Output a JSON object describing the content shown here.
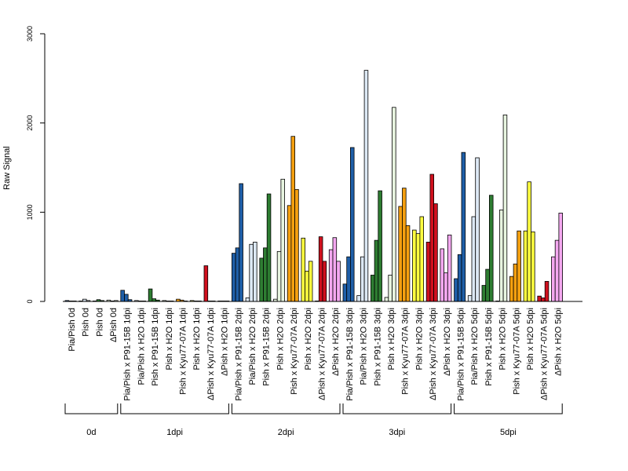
{
  "chart_data": {
    "type": "bar",
    "ylabel": "Raw Signal",
    "ylim": [
      0,
      3000
    ],
    "yticks": [
      0,
      1000,
      2000,
      3000
    ],
    "grid": false,
    "categories": [
      "Pia/Pish 0d",
      "Pish 0d",
      "Pish 0d",
      "ΔPish 0d",
      "Pia/Pish x P91-15B 1dpi",
      "Pia/Pish x H2O 1dpi",
      "Pish x P91-15B 1dpi",
      "Pish x H2O 1dpi",
      "Pish x Kyu77-07A 1dpi",
      "Pish x H2O 1dpi",
      "ΔPish x Kyu77-07A 1dpi",
      "ΔPish x H2O 1dpi",
      "Pia/Pish x P91-15B 2dpi",
      "Pia/Pish x H2O 2dpi",
      "Pish x P91-15B 2dpi",
      "Pish x H2O 2dpi",
      "Pish x Kyu77-07A 2dpi",
      "Pish x H2O 2dpi",
      "ΔPish x Kyu77-07A 2dpi",
      "ΔPish x H2O 2dpi",
      "Pia/Pish x P91-15B 3dpi",
      "Pia/Pish x H2O 3dpi",
      "Pish x P91-15B 3dpi",
      "Pish x H2O 3dpi",
      "Pish x Kyu77-07A 3dpi",
      "Pish x H2O 3dpi",
      "ΔPish x Kyu77-07A 3dpi",
      "ΔPish x H2O 3dpi",
      "Pia/Pish x P91-15B 5dpi",
      "Pia/Pish x H2O 5dpi",
      "Pish x P91-15B 5dpi",
      "Pish x H2O 5dpi",
      "Pish x Kyu77-07A 5dpi",
      "Pish x H2O 5dpi",
      "ΔPish x Kyu77-07A 5dpi",
      "ΔPish x H2O 5dpi"
    ],
    "category_colors": [
      "#1f5fa8",
      "#dce8f4",
      "#2e7d32",
      "#e8f5e0",
      "#1f5fa8",
      "#dce8f4",
      "#2e7d32",
      "#e8f5e0",
      "#f5a010",
      "#ffff40",
      "#d0101e",
      "#f4a8f0",
      "#1f5fa8",
      "#dce8f4",
      "#2e7d32",
      "#e8f5e0",
      "#f5a010",
      "#ffff40",
      "#d0101e",
      "#f4a8f0",
      "#1f5fa8",
      "#dce8f4",
      "#2e7d32",
      "#e8f5e0",
      "#f5a010",
      "#ffff40",
      "#d0101e",
      "#f4a8f0",
      "#1f5fa8",
      "#dce8f4",
      "#2e7d32",
      "#e8f5e0",
      "#f5a010",
      "#ffff40",
      "#d0101e",
      "#f4a8f0"
    ],
    "values": [
      [
        10,
        5,
        5
      ],
      [
        5,
        25,
        10
      ],
      [
        5,
        20,
        10
      ],
      [
        15,
        5,
        10
      ],
      [
        125,
        80,
        20
      ],
      [
        10,
        5,
        5
      ],
      [
        140,
        30,
        15
      ],
      [
        10,
        5,
        5
      ],
      [
        25,
        15,
        5
      ],
      [
        10,
        5,
        5
      ],
      [
        400,
        5,
        5
      ],
      [
        5,
        5,
        5
      ],
      [
        540,
        600,
        1320
      ],
      [
        40,
        640,
        665
      ],
      [
        485,
        600,
        1205
      ],
      [
        25,
        560,
        1370
      ],
      [
        1075,
        1850,
        1255
      ],
      [
        710,
        340,
        450
      ],
      [
        5,
        725,
        450
      ],
      [
        580,
        715,
        450
      ],
      [
        195,
        500,
        1725
      ],
      [
        65,
        500,
        2590
      ],
      [
        295,
        685,
        1240
      ],
      [
        45,
        295,
        2175
      ],
      [
        1065,
        1270,
        850
      ],
      [
        800,
        760,
        950
      ],
      [
        665,
        1425,
        1095
      ],
      [
        590,
        320,
        745
      ],
      [
        255,
        525,
        1670
      ],
      [
        65,
        950,
        1610
      ],
      [
        180,
        360,
        1190
      ],
      [
        5,
        1025,
        2090
      ],
      [
        280,
        420,
        790
      ],
      [
        790,
        1340,
        780
      ],
      [
        60,
        40,
        225
      ],
      [
        500,
        685,
        990
      ]
    ],
    "groups": [
      {
        "label": "0d",
        "start": 0,
        "end": 3
      },
      {
        "label": "1dpi",
        "start": 4,
        "end": 11
      },
      {
        "label": "2dpi",
        "start": 12,
        "end": 19
      },
      {
        "label": "3dpi",
        "start": 20,
        "end": 27
      },
      {
        "label": "5dpi",
        "start": 28,
        "end": 35
      }
    ]
  }
}
